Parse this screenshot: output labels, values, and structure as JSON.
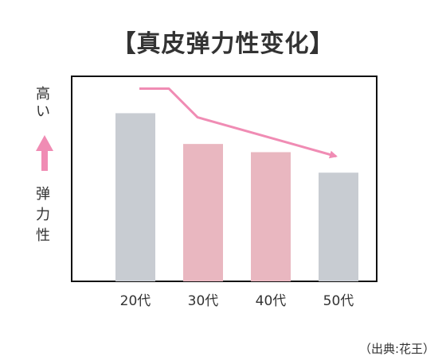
{
  "title": "【真皮弹力性变化】",
  "y_label_high": "高い",
  "y_label_axis": "弹力性",
  "source": "（出典:花王）",
  "colors": {
    "frame": "#111111",
    "bar_gray": "#c8ccd2",
    "bar_pink": "#e9b7c0",
    "trend_arrow": "#f08cb4",
    "up_arrow": "#f08cb4"
  },
  "chart_data": {
    "type": "bar",
    "title": "【真皮弹力性变化】",
    "ylabel": "弹力性",
    "categories": [
      "20代",
      "30代",
      "40代",
      "50代"
    ],
    "values": [
      82,
      67,
      63,
      53
    ],
    "bar_colors": [
      "#c8ccd2",
      "#e9b7c0",
      "#e9b7c0",
      "#c8ccd2"
    ],
    "ylim": [
      0,
      100
    ],
    "grid": false,
    "legend": "none",
    "trend_arrow": [
      94,
      94,
      80,
      61
    ]
  }
}
